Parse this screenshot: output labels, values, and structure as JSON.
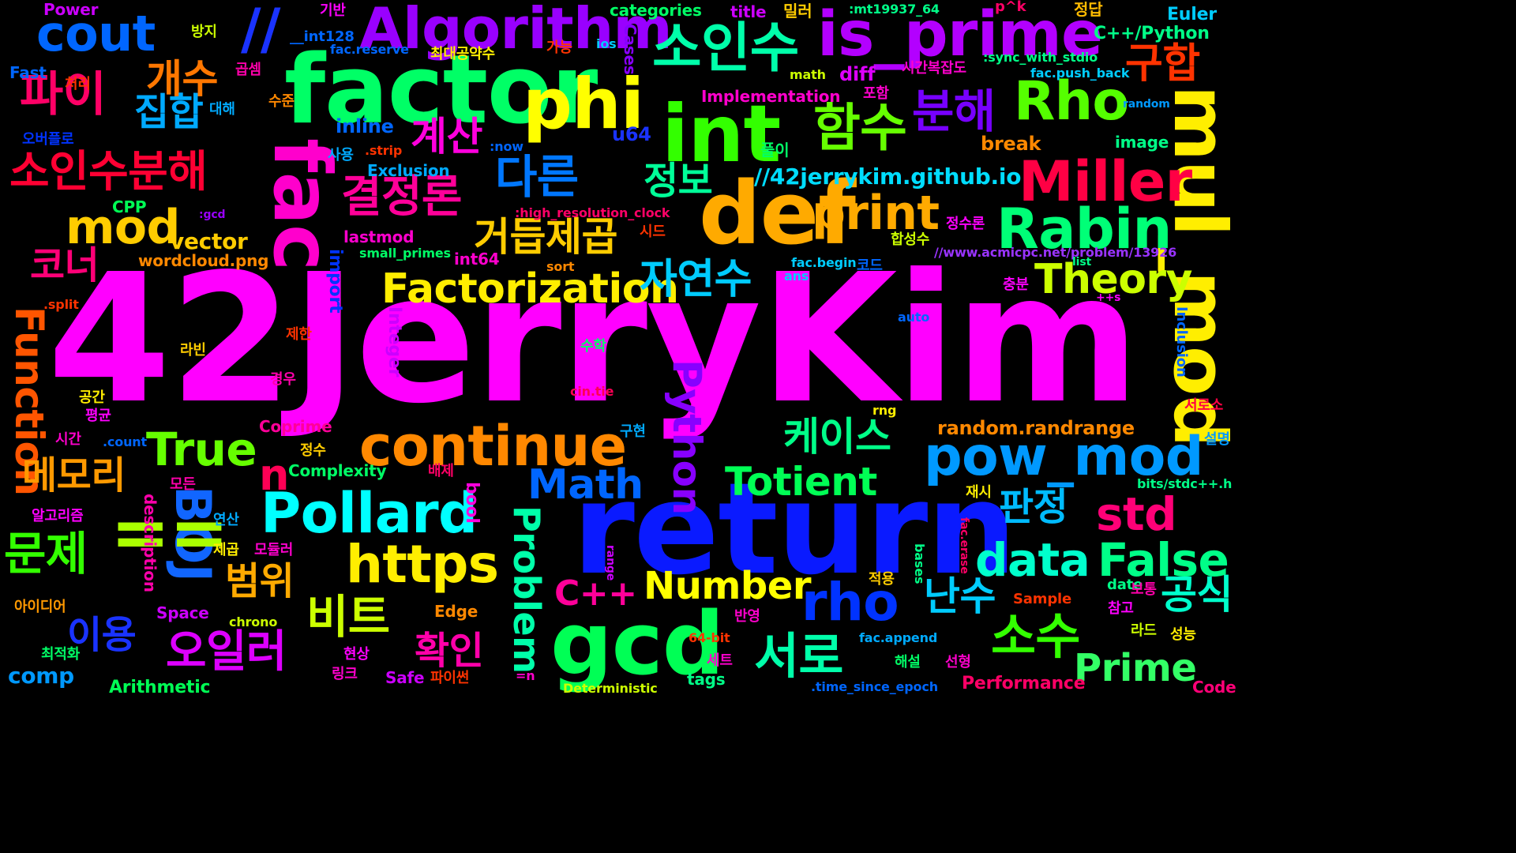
{
  "image": "wordcloud",
  "words": [
    {
      "text": "42JerryKim",
      "color": "#ff00ff"
    },
    {
      "text": "return",
      "color": "#0a1aff"
    },
    {
      "text": "factor",
      "color": "#00ff66"
    },
    {
      "text": "fac",
      "color": "#ff00cc"
    },
    {
      "text": "def",
      "color": "#ffaa00"
    },
    {
      "text": "int",
      "color": "#33ff00"
    },
    {
      "text": "gcd",
      "color": "#00ff55"
    },
    {
      "text": "is_prime",
      "color": "#b300ff"
    },
    {
      "text": "mul_mod",
      "color": "#ffee00"
    },
    {
      "text": "phi",
      "color": "#ffff00"
    },
    {
      "text": "Algorithm",
      "color": "#9900ff"
    },
    {
      "text": "소인수",
      "color": "#00ffaa"
    },
    {
      "text": "cout",
      "color": "#0066ff"
    },
    {
      "text": "//",
      "color": "#1a33ff"
    },
    {
      "text": "Rho",
      "color": "#55ff00"
    },
    {
      "text": "Miller",
      "color": "#ff0044"
    },
    {
      "text": "Rabin",
      "color": "#00ff77"
    },
    {
      "text": "함수",
      "color": "#66ff00"
    },
    {
      "text": "분해",
      "color": "#7700ff"
    },
    {
      "text": "구합",
      "color": "#ff3300"
    },
    {
      "text": "파이",
      "color": "#ff0066"
    },
    {
      "text": "개수",
      "color": "#ff7700"
    },
    {
      "text": "집합",
      "color": "#00aaff"
    },
    {
      "text": "소인수분해",
      "color": "#ff0033"
    },
    {
      "text": "계산",
      "color": "#ff00dd"
    },
    {
      "text": "다른",
      "color": "#0077ff"
    },
    {
      "text": "결정론",
      "color": "#ff0099"
    },
    {
      "text": "mod",
      "color": "#ffcc00"
    },
    {
      "text": "print",
      "color": "#ffaa00"
    },
    {
      "text": "정보",
      "color": "#00ff99"
    },
    {
      "text": "거듭제곱",
      "color": "#ffcc00"
    },
    {
      "text": "Factorization",
      "color": "#ffee00"
    },
    {
      "text": "자연수",
      "color": "#00ccff"
    },
    {
      "text": "Theory",
      "color": "#ccff00"
    },
    {
      "text": "코너",
      "color": "#ff0077"
    },
    {
      "text": "Function",
      "color": "#ff5500"
    },
    {
      "text": "True",
      "color": "#66ff00"
    },
    {
      "text": "continue",
      "color": "#ff8800"
    },
    {
      "text": "케이스",
      "color": "#00ff88"
    },
    {
      "text": "pow_mod",
      "color": "#0099ff"
    },
    {
      "text": "n",
      "color": "#ff0055"
    },
    {
      "text": "Pollard",
      "color": "#00ffff"
    },
    {
      "text": "Python",
      "color": "#8800ff"
    },
    {
      "text": "Totient",
      "color": "#00ff55"
    },
    {
      "text": "std",
      "color": "#ff0077"
    },
    {
      "text": "메모리",
      "color": "#ff9900"
    },
    {
      "text": "문제",
      "color": "#33ff00"
    },
    {
      "text": "BOJ",
      "color": "#1166ff"
    },
    {
      "text": "==",
      "color": "#aaff00"
    },
    {
      "text": "https",
      "color": "#ffee00"
    },
    {
      "text": "Math",
      "color": "#0066ff"
    },
    {
      "text": "판정",
      "color": "#00bbff"
    },
    {
      "text": "data",
      "color": "#00ffcc"
    },
    {
      "text": "False",
      "color": "#00ff88"
    },
    {
      "text": "범위",
      "color": "#ffaa00"
    },
    {
      "text": "비트",
      "color": "#ccff00"
    },
    {
      "text": "Number",
      "color": "#ffff00"
    },
    {
      "text": "Problem",
      "color": "#00ffaa"
    },
    {
      "text": "rho",
      "color": "#0033ff"
    },
    {
      "text": "난수",
      "color": "#00ccff"
    },
    {
      "text": "공식",
      "color": "#00ffcc"
    },
    {
      "text": "C++",
      "color": "#ff0099"
    },
    {
      "text": "이용",
      "color": "#1a33ff"
    },
    {
      "text": "오일러",
      "color": "#dd00ff"
    },
    {
      "text": "확인",
      "color": "#ff00aa"
    },
    {
      "text": "서로",
      "color": "#00ffaa"
    },
    {
      "text": "소수",
      "color": "#33ff00"
    },
    {
      "text": "Prime",
      "color": "#33ff66"
    },
    {
      "text": "comp",
      "color": "#0099ff"
    },
    {
      "text": "Arithmetic",
      "color": "#00ff55"
    },
    {
      "text": "Euler",
      "color": "#00ccff"
    },
    {
      "text": "C++/Python",
      "color": "#00ff88"
    },
    {
      "text": "//42jerrykim.github.io",
      "color": "#00ddff"
    },
    {
      "text": "//www.acmicpc.net/problem/13926",
      "color": "#9933ff"
    },
    {
      "text": "Power",
      "color": "#cc00ff"
    },
    {
      "text": "categories",
      "color": "#00ff66"
    },
    {
      "text": "title",
      "color": "#cc00ff"
    },
    {
      "text": "밀러",
      "color": "#ffcc00"
    },
    {
      "text": ":mt19937_64",
      "color": "#00ff88"
    },
    {
      "text": "p^k",
      "color": "#ff0066"
    },
    {
      "text": "정답",
      "color": "#ffbb00"
    },
    {
      "text": "__int128",
      "color": "#0066ff"
    },
    {
      "text": "ios",
      "color": "#00ccff"
    },
    {
      "text": "기반",
      "color": "#ff00ff"
    },
    {
      "text": "방지",
      "color": "#ccff00"
    },
    {
      "text": "fac.reserve",
      "color": "#0066ff"
    },
    {
      "text": "최대공약수",
      "color": "#ffee00"
    },
    {
      "text": "가능",
      "color": "#ff3300"
    },
    {
      "text": "Cases",
      "color": "#8800ff"
    },
    {
      "text": ":sync_with_stdio",
      "color": "#00ff88"
    },
    {
      "text": "fac.push_back",
      "color": "#00ccff"
    },
    {
      "text": "Fast",
      "color": "#0066ff"
    },
    {
      "text": "처리",
      "color": "#ff3300"
    },
    {
      "text": "곱셈",
      "color": "#ff00aa"
    },
    {
      "text": "math",
      "color": "#ccff00"
    },
    {
      "text": "시간복잡도",
      "color": "#ff00cc"
    },
    {
      "text": "diff",
      "color": "#dd00ff"
    },
    {
      "text": "대해",
      "color": "#00aaff"
    },
    {
      "text": "수준",
      "color": "#ff8800"
    },
    {
      "text": "Implementation",
      "color": "#ff00cc"
    },
    {
      "text": "포함",
      "color": "#ff00cc"
    },
    {
      "text": "random",
      "color": "#0099ff"
    },
    {
      "text": "inline",
      "color": "#0066ff"
    },
    {
      "text": "u64",
      "color": "#1a33ff"
    },
    {
      "text": "break",
      "color": "#ff8800"
    },
    {
      "text": "오버플로",
      "color": "#0033ff"
    },
    {
      "text": ":now",
      "color": "#0066ff"
    },
    {
      "text": "사용",
      "color": "#00aaff"
    },
    {
      "text": ".strip",
      "color": "#ff3300"
    },
    {
      "text": "풀이",
      "color": "#00ff66"
    },
    {
      "text": "image",
      "color": "#00ff88"
    },
    {
      "text": "Exclusion",
      "color": "#00aaff"
    },
    {
      "text": "CPP",
      "color": "#00ff55"
    },
    {
      "text": ":gcd",
      "color": "#9900ff"
    },
    {
      "text": ":high_resolution_clock",
      "color": "#ff0066"
    },
    {
      "text": "시드",
      "color": "#ff3300"
    },
    {
      "text": "vector",
      "color": "#ffcc00"
    },
    {
      "text": "lastmod",
      "color": "#ff00cc"
    },
    {
      "text": "합성수",
      "color": "#ccff00"
    },
    {
      "text": "정수론",
      "color": "#ff00ff"
    },
    {
      "text": "wordcloud.png",
      "color": "#ff8800"
    },
    {
      "text": "small_primes",
      "color": "#00ff66"
    },
    {
      "text": "int64",
      "color": "#ff00cc"
    },
    {
      "text": "sort",
      "color": "#ff8800"
    },
    {
      "text": "fac.begin",
      "color": "#00ccff"
    },
    {
      "text": "코드",
      "color": "#0066ff"
    },
    {
      "text": "list",
      "color": "#00ff88"
    },
    {
      "text": "import",
      "color": "#0033ff"
    },
    {
      "text": "ans",
      "color": "#00ccff"
    },
    {
      "text": "충분",
      "color": "#ff00ff"
    },
    {
      "text": "++s",
      "color": "#ff00ff"
    },
    {
      "text": ".split",
      "color": "#ff3300"
    },
    {
      "text": "auto",
      "color": "#0066ff"
    },
    {
      "text": "Integer",
      "color": "#cc00ff"
    },
    {
      "text": "제한",
      "color": "#ff3300"
    },
    {
      "text": "Inclusion",
      "color": "#0066ff"
    },
    {
      "text": "라빈",
      "color": "#ffcc00"
    },
    {
      "text": "수학",
      "color": "#00ff66"
    },
    {
      "text": "경우",
      "color": "#ff00aa"
    },
    {
      "text": "cin.tie",
      "color": "#ff0055"
    },
    {
      "text": "공간",
      "color": "#ffee00"
    },
    {
      "text": "평균",
      "color": "#ff00ff"
    },
    {
      "text": "서로소",
      "color": "#ff0044"
    },
    {
      "text": "Coprime",
      "color": "#ff0099"
    },
    {
      "text": "rng",
      "color": "#ffee00"
    },
    {
      "text": "random.randrange",
      "color": "#ff8800"
    },
    {
      "text": "시간",
      "color": "#ff00cc"
    },
    {
      "text": ".count",
      "color": "#0066ff"
    },
    {
      "text": "구현",
      "color": "#00aaff"
    },
    {
      "text": "설명",
      "color": "#0099ff"
    },
    {
      "text": "정수",
      "color": "#ffcc00"
    },
    {
      "text": "Complexity",
      "color": "#00ff66"
    },
    {
      "text": "배제",
      "color": "#ff0066"
    },
    {
      "text": "모든",
      "color": "#ff00aa"
    },
    {
      "text": "재시",
      "color": "#ffee00"
    },
    {
      "text": "bits/stdc++.h",
      "color": "#00ff88"
    },
    {
      "text": "bool",
      "color": "#ff00dd"
    },
    {
      "text": "알고리즘",
      "color": "#ff00ff"
    },
    {
      "text": "연산",
      "color": "#00aaff"
    },
    {
      "text": "제곱",
      "color": "#ffee00"
    },
    {
      "text": "모듈러",
      "color": "#ff00cc"
    },
    {
      "text": "description",
      "color": "#ff00aa"
    },
    {
      "text": "range",
      "color": "#cc00ff"
    },
    {
      "text": "bases",
      "color": "#00ff88"
    },
    {
      "text": "fac.erase",
      "color": "#ff0066"
    },
    {
      "text": "적용",
      "color": "#ffcc00"
    },
    {
      "text": "date",
      "color": "#00ff88"
    },
    {
      "text": "보통",
      "color": "#ff00aa"
    },
    {
      "text": "Sample",
      "color": "#ff3300"
    },
    {
      "text": "아이디어",
      "color": "#ff9900"
    },
    {
      "text": "Space",
      "color": "#cc00ff"
    },
    {
      "text": "Edge",
      "color": "#ff8800"
    },
    {
      "text": "반영",
      "color": "#ff00cc"
    },
    {
      "text": "참고",
      "color": "#ff00ff"
    },
    {
      "text": "chrono",
      "color": "#ccff00"
    },
    {
      "text": "64-bit",
      "color": "#ff3300"
    },
    {
      "text": "fac.append",
      "color": "#00aaff"
    },
    {
      "text": "라드",
      "color": "#ccff00"
    },
    {
      "text": "성능",
      "color": "#ffee00"
    },
    {
      "text": "최적화",
      "color": "#00ff66"
    },
    {
      "text": "현상",
      "color": "#ff00ff"
    },
    {
      "text": "세트",
      "color": "#ff00cc"
    },
    {
      "text": "해설",
      "color": "#00ff66"
    },
    {
      "text": "선형",
      "color": "#ff00cc"
    },
    {
      "text": "=n",
      "color": "#ff00cc"
    },
    {
      "text": "링크",
      "color": "#ff00cc"
    },
    {
      "text": "Safe",
      "color": "#cc00ff"
    },
    {
      "text": "파이썬",
      "color": "#ff3300"
    },
    {
      "text": "tags",
      "color": "#00ff88"
    },
    {
      "text": "Deterministic",
      "color": "#ccff00"
    },
    {
      "text": ".time_since_epoch",
      "color": "#0066ff"
    },
    {
      "text": "Performance",
      "color": "#ff0066"
    },
    {
      "text": "Code",
      "color": "#ff0077"
    }
  ]
}
